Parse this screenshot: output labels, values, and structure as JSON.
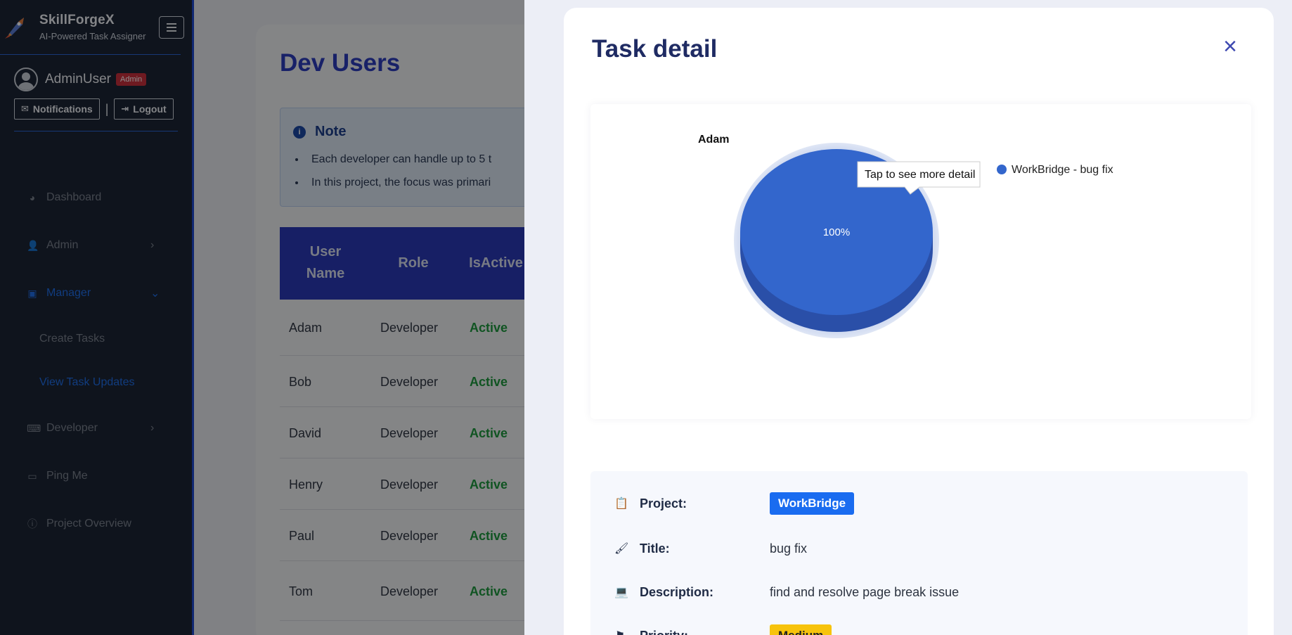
{
  "sidebar": {
    "brand": {
      "title": "SkillForgeX",
      "subtitle": "AI-Powered Task Assigner"
    },
    "user": {
      "name": "AdminUser",
      "role": "Admin"
    },
    "actions": {
      "notifications": "Notifications",
      "logout": "Logout",
      "separator": "|"
    },
    "nav": {
      "dashboard": "Dashboard",
      "admin": "Admin",
      "manager": "Manager",
      "create_tasks": "Create Tasks",
      "view_task_updates": "View Task Updates",
      "developer": "Developer",
      "ping_me": "Ping Me",
      "project_overview": "Project Overview"
    }
  },
  "main": {
    "title": "Dev Users",
    "note": {
      "title": "Note",
      "items": [
        "Each developer can handle up to 5 t",
        "In this project, the focus was primari"
      ]
    },
    "table": {
      "headers": {
        "user_name_1": "User",
        "user_name_2": "Name",
        "role": "Role",
        "is_active": "IsActive"
      },
      "rows": [
        {
          "name": "Adam",
          "role": "Developer",
          "status": "Active"
        },
        {
          "name": "Bob",
          "role": "Developer",
          "status": "Active"
        },
        {
          "name": "David",
          "role": "Developer",
          "status": "Active"
        },
        {
          "name": "Henry",
          "role": "Developer",
          "status": "Active"
        },
        {
          "name": "Paul",
          "role": "Developer",
          "status": "Active"
        },
        {
          "name": "Tom",
          "role": "Developer",
          "status": "Active"
        }
      ]
    }
  },
  "panel": {
    "title": "Task detail",
    "close": "×",
    "details": {
      "project_label": "Project:",
      "project_value": "WorkBridge",
      "title_label": "Title:",
      "title_value": "bug fix",
      "description_label": "Description:",
      "description_value": "find and resolve page break issue",
      "priority_label": "Priority:",
      "priority_value": "Medium"
    }
  },
  "chart_data": {
    "type": "pie",
    "title": "Adam",
    "categories": [
      "WorkBridge - bug fix"
    ],
    "values": [
      100
    ],
    "data_labels": [
      "100%"
    ],
    "tooltip": "Tap to see more detail",
    "colors": [
      "#3366cc"
    ],
    "legend": "right"
  },
  "colors": {
    "accent": "#2a3ab9",
    "link": "#1f6ee8",
    "active_status": "#1e9a3f",
    "badge_admin": "#c8313d",
    "pill_project": "#1a6cf0",
    "pill_priority": "#f7c30c"
  }
}
